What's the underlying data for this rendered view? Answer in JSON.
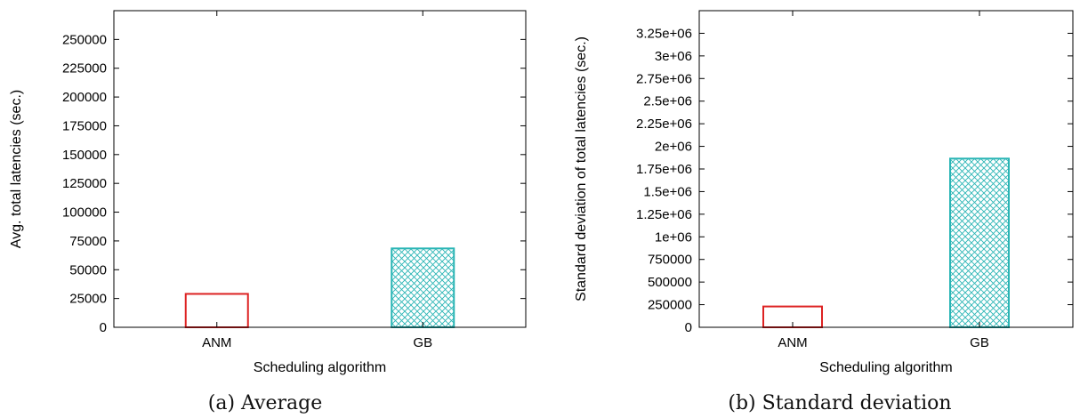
{
  "chart_data": [
    {
      "type": "bar",
      "categories": [
        "ANM",
        "GB"
      ],
      "values": [
        29000,
        68500
      ],
      "xlabel": "Scheduling algorithm",
      "ylabel": "Avg. total latencies (sec.)",
      "ylim": [
        0,
        275000
      ],
      "yticks": [
        0,
        25000,
        50000,
        75000,
        100000,
        125000,
        150000,
        175000,
        200000,
        225000,
        250000
      ],
      "ytick_labels": [
        "0",
        "25000",
        "50000",
        "75000",
        "100000",
        "125000",
        "150000",
        "175000",
        "200000",
        "225000",
        "250000"
      ],
      "caption": "(a) Average",
      "grid": false,
      "bar_colors": [
        "#dd2222",
        "#2ab5b5"
      ],
      "bar_patterns": [
        "none",
        "crosshatch"
      ]
    },
    {
      "type": "bar",
      "categories": [
        "ANM",
        "GB"
      ],
      "values": [
        230000,
        1865000
      ],
      "xlabel": "Scheduling algorithm",
      "ylabel": "Standard deviation of total latencies (sec.)",
      "ylim": [
        0,
        3500000
      ],
      "yticks": [
        0,
        250000,
        500000,
        750000,
        1000000,
        1250000,
        1500000,
        1750000,
        2000000,
        2250000,
        2500000,
        2750000,
        3000000,
        3250000
      ],
      "ytick_labels": [
        "0",
        "250000",
        "500000",
        "750000",
        "1e+06",
        "1.25e+06",
        "1.5e+06",
        "1.75e+06",
        "2e+06",
        "2.25e+06",
        "2.5e+06",
        "2.75e+06",
        "3e+06",
        "3.25e+06"
      ],
      "caption": "(b) Standard deviation",
      "grid": false,
      "bar_colors": [
        "#dd2222",
        "#2ab5b5"
      ],
      "bar_patterns": [
        "none",
        "crosshatch"
      ]
    }
  ]
}
